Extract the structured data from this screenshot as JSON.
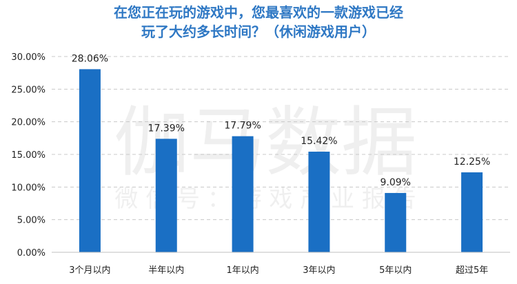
{
  "title": {
    "line1": "在您正在玩的游戏中，您最喜欢的一款游戏已经",
    "line2": "玩了大约多长时间？（休闲游戏用户）"
  },
  "watermark": {
    "main": "伽马数据",
    "sub": "微 信 号 ： 游 戏 产 业 报 告"
  },
  "colors": {
    "bar": "#1a6fc4",
    "grid": "#c8c8c8",
    "title": "#2f78c4"
  },
  "chart_data": {
    "type": "bar",
    "categories": [
      "3个月以内",
      "半年以内",
      "1年以内",
      "3年以内",
      "5年以内",
      "超过5年"
    ],
    "values": [
      28.06,
      17.39,
      17.79,
      15.42,
      9.09,
      12.25
    ],
    "value_labels": [
      "28.06%",
      "17.39%",
      "17.79%",
      "15.42%",
      "9.09%",
      "12.25%"
    ],
    "unit": "%",
    "ylim": [
      0,
      30
    ],
    "yticks": [
      "0.00%",
      "5.00%",
      "10.00%",
      "15.00%",
      "20.00%",
      "25.00%",
      "30.00%"
    ],
    "grid": true,
    "xlabel": "",
    "ylabel": ""
  }
}
